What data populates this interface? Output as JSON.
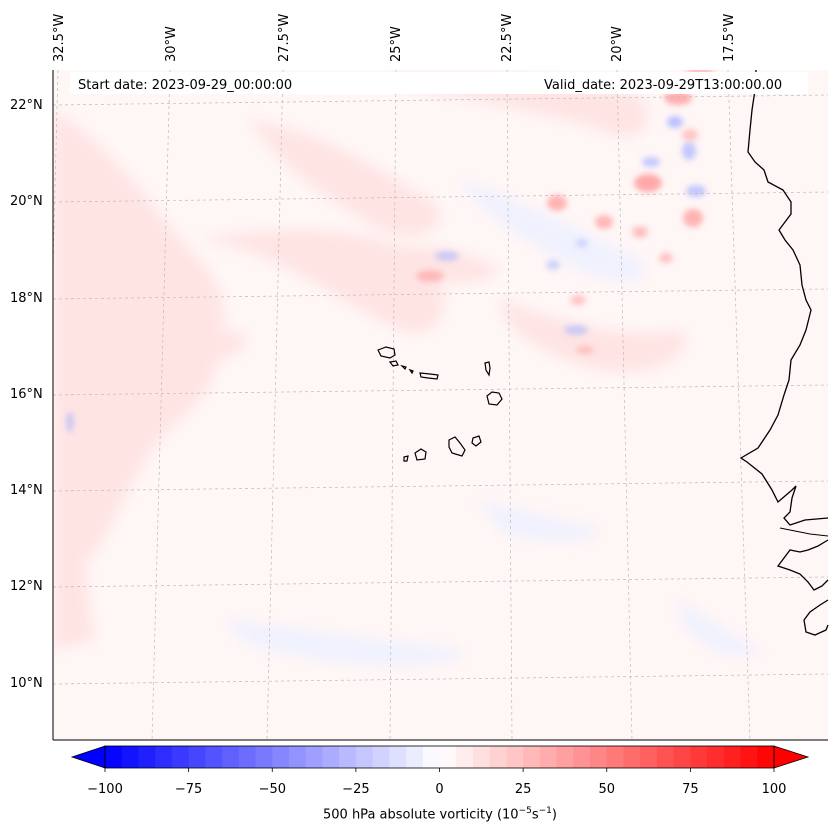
{
  "map": {
    "start_date": "Start date: 2023-09-29_00:00:00",
    "valid_date": "Valid_date: 2023-09-29T13:00:00.00",
    "lon_labels": [
      "32.5°W",
      "30°W",
      "27.5°W",
      "25°W",
      "22.5°W",
      "20°W",
      "17.5°W"
    ],
    "lat_labels": [
      "22°N",
      "20°N",
      "18°N",
      "16°N",
      "14°N",
      "12°N",
      "10°N"
    ],
    "colors": {
      "background": "#fff6f6",
      "coast": "#000000",
      "grid": "#bbbbbb"
    }
  },
  "colorbar": {
    "label_text": "500 hPa absolute vorticity (10",
    "label_exp1": "−5",
    "label_mid": "s",
    "label_exp2": "−1",
    "label_end": ")",
    "ticks": [
      "−100",
      "−75",
      "−50",
      "−25",
      "0",
      "25",
      "50",
      "75",
      "100"
    ],
    "min": -100,
    "max": 100,
    "levels": 40
  }
}
